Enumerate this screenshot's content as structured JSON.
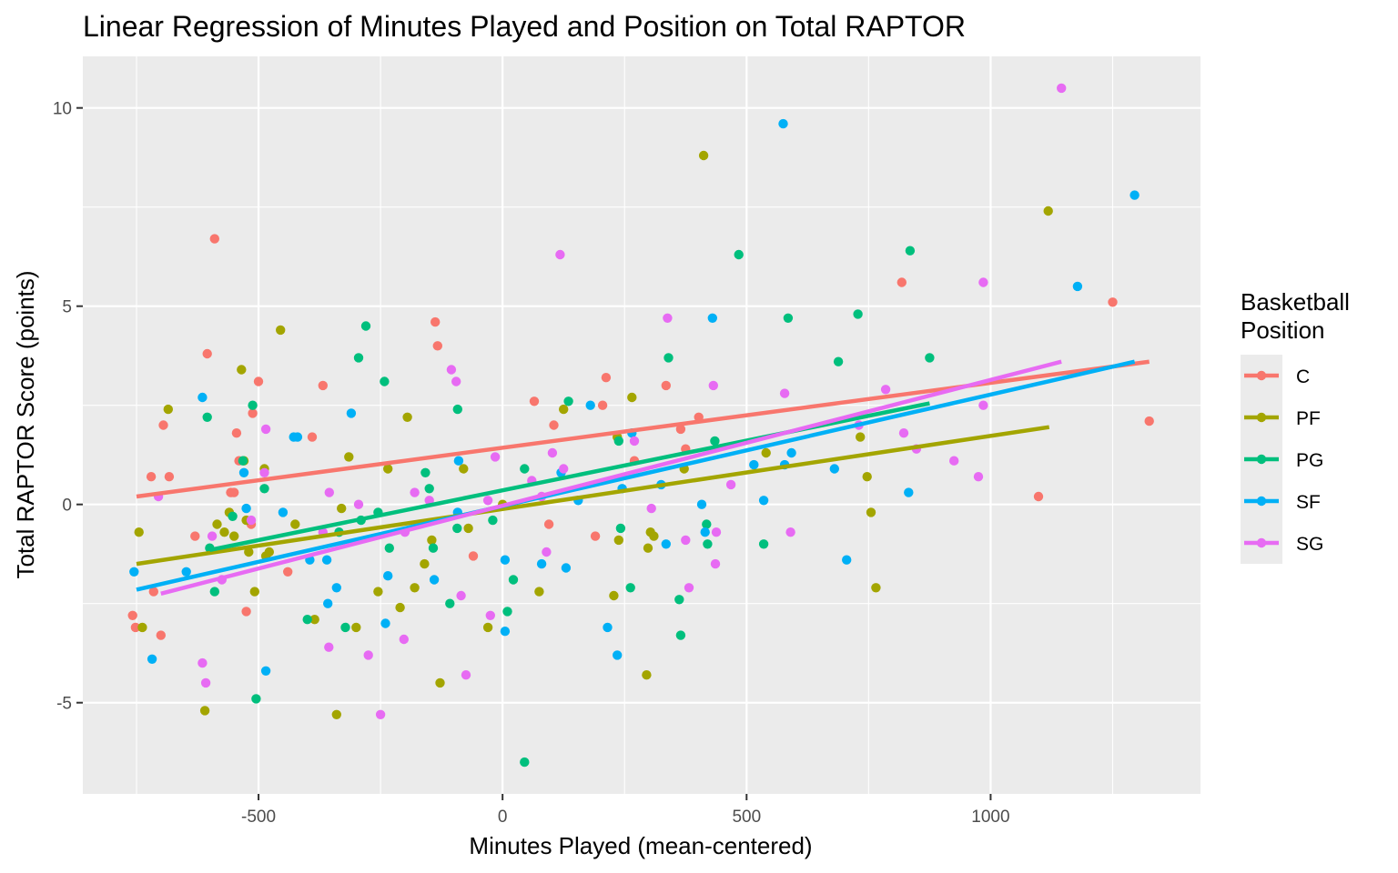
{
  "chart_data": {
    "type": "scatter",
    "title": "Linear Regression of Minutes Played and Position on Total RAPTOR",
    "xlabel": "Minutes Played (mean-centered)",
    "ylabel": "Total RAPTOR Score (points)",
    "xlim": [
      -860,
      1430
    ],
    "ylim": [
      -7.3,
      11.3
    ],
    "x_ticks": [
      -500,
      0,
      500,
      1000
    ],
    "x_tick_labels": [
      "-500",
      "0",
      "500",
      "1000"
    ],
    "y_ticks": [
      -5,
      0,
      5,
      10
    ],
    "y_tick_labels": [
      "-5",
      "0",
      "5",
      "10"
    ],
    "grid": true,
    "legend": {
      "title": "Basketball\nPosition",
      "placement": "right"
    },
    "series": [
      {
        "name": "C",
        "color": "#F8766D",
        "fit": {
          "x": [
            -750,
            1325
          ],
          "y": [
            0.2,
            3.6
          ]
        },
        "points": [
          [
            -758,
            -2.8
          ],
          [
            -752,
            -3.1
          ],
          [
            -720,
            0.7
          ],
          [
            -715,
            -2.2
          ],
          [
            -700,
            -3.3
          ],
          [
            -695,
            2.0
          ],
          [
            -683,
            0.7
          ],
          [
            -630,
            -0.8
          ],
          [
            -605,
            3.8
          ],
          [
            -590,
            6.7
          ],
          [
            -557,
            0.3
          ],
          [
            -550,
            0.3
          ],
          [
            -545,
            1.8
          ],
          [
            -540,
            1.1
          ],
          [
            -525,
            -2.7
          ],
          [
            -515,
            -0.5
          ],
          [
            -512,
            2.3
          ],
          [
            -500,
            3.1
          ],
          [
            -440,
            -1.7
          ],
          [
            -390,
            1.7
          ],
          [
            -368,
            3.0
          ],
          [
            -138,
            4.6
          ],
          [
            -133,
            4.0
          ],
          [
            -60,
            -1.3
          ],
          [
            65,
            2.6
          ],
          [
            95,
            -0.5
          ],
          [
            105,
            2.0
          ],
          [
            190,
            -0.8
          ],
          [
            205,
            2.5
          ],
          [
            212,
            3.2
          ],
          [
            270,
            1.1
          ],
          [
            335,
            3.0
          ],
          [
            365,
            1.9
          ],
          [
            375,
            1.4
          ],
          [
            402,
            2.2
          ],
          [
            818,
            5.6
          ],
          [
            1098,
            0.2
          ],
          [
            1250,
            5.1
          ],
          [
            1325,
            2.1
          ]
        ]
      },
      {
        "name": "PF",
        "color": "#A3A500",
        "fit": {
          "x": [
            -750,
            1120
          ],
          "y": [
            -1.5,
            1.95
          ]
        },
        "points": [
          [
            -745,
            -0.7
          ],
          [
            -738,
            -3.1
          ],
          [
            -685,
            2.4
          ],
          [
            -610,
            -5.2
          ],
          [
            -585,
            -0.5
          ],
          [
            -570,
            -0.7
          ],
          [
            -560,
            -0.2
          ],
          [
            -550,
            -0.8
          ],
          [
            -535,
            3.4
          ],
          [
            -530,
            1.1
          ],
          [
            -525,
            -0.4
          ],
          [
            -520,
            -1.2
          ],
          [
            -508,
            -2.2
          ],
          [
            -488,
            0.9
          ],
          [
            -485,
            -1.3
          ],
          [
            -478,
            -1.2
          ],
          [
            -455,
            4.4
          ],
          [
            -425,
            -0.5
          ],
          [
            -385,
            -2.9
          ],
          [
            -330,
            -0.1
          ],
          [
            -315,
            1.2
          ],
          [
            -340,
            -5.3
          ],
          [
            -300,
            -3.1
          ],
          [
            -255,
            -2.2
          ],
          [
            -235,
            0.9
          ],
          [
            -210,
            -2.6
          ],
          [
            -195,
            2.2
          ],
          [
            -180,
            -2.1
          ],
          [
            -160,
            -1.5
          ],
          [
            -145,
            -0.9
          ],
          [
            -128,
            -4.5
          ],
          [
            -80,
            0.9
          ],
          [
            -70,
            -0.6
          ],
          [
            -30,
            -3.1
          ],
          [
            0,
            0.0
          ],
          [
            75,
            -2.2
          ],
          [
            125,
            2.4
          ],
          [
            228,
            -2.3
          ],
          [
            235,
            1.7
          ],
          [
            238,
            -0.9
          ],
          [
            265,
            2.7
          ],
          [
            295,
            -4.3
          ],
          [
            298,
            -1.1
          ],
          [
            303,
            -0.7
          ],
          [
            310,
            -0.8
          ],
          [
            372,
            0.9
          ],
          [
            412,
            8.8
          ],
          [
            540,
            1.3
          ],
          [
            733,
            1.7
          ],
          [
            747,
            0.7
          ],
          [
            755,
            -0.2
          ],
          [
            765,
            -2.1
          ],
          [
            1118,
            7.4
          ]
        ]
      },
      {
        "name": "PG",
        "color": "#00BF7D",
        "fit": {
          "x": [
            -600,
            875
          ],
          "y": [
            -1.15,
            2.55
          ]
        },
        "points": [
          [
            -605,
            2.2
          ],
          [
            -600,
            -1.1
          ],
          [
            -590,
            -2.2
          ],
          [
            -553,
            -0.3
          ],
          [
            -532,
            1.1
          ],
          [
            -512,
            2.5
          ],
          [
            -505,
            -4.9
          ],
          [
            -488,
            0.4
          ],
          [
            -400,
            -2.9
          ],
          [
            -335,
            -0.7
          ],
          [
            -322,
            -3.1
          ],
          [
            -295,
            3.7
          ],
          [
            -290,
            -0.4
          ],
          [
            -280,
            4.5
          ],
          [
            -255,
            -0.2
          ],
          [
            -242,
            3.1
          ],
          [
            -232,
            -1.1
          ],
          [
            -158,
            0.8
          ],
          [
            -150,
            0.4
          ],
          [
            -142,
            -1.1
          ],
          [
            -108,
            -2.5
          ],
          [
            -92,
            2.4
          ],
          [
            -93,
            -0.6
          ],
          [
            -20,
            -0.4
          ],
          [
            10,
            -2.7
          ],
          [
            22,
            -1.9
          ],
          [
            45,
            0.9
          ],
          [
            45,
            -6.5
          ],
          [
            135,
            2.6
          ],
          [
            238,
            1.6
          ],
          [
            242,
            -0.6
          ],
          [
            262,
            -2.1
          ],
          [
            340,
            3.7
          ],
          [
            362,
            -2.4
          ],
          [
            365,
            -3.3
          ],
          [
            418,
            -0.5
          ],
          [
            420,
            -1.0
          ],
          [
            435,
            1.6
          ],
          [
            484,
            6.3
          ],
          [
            535,
            -1.0
          ],
          [
            585,
            4.7
          ],
          [
            688,
            3.6
          ],
          [
            728,
            4.8
          ],
          [
            835,
            6.4
          ],
          [
            875,
            3.7
          ]
        ]
      },
      {
        "name": "SF",
        "color": "#00B0F6",
        "fit": {
          "x": [
            -750,
            1295
          ],
          "y": [
            -2.15,
            3.6
          ]
        },
        "points": [
          [
            -755,
            -1.7
          ],
          [
            -718,
            -3.9
          ],
          [
            -648,
            -1.7
          ],
          [
            -615,
            2.7
          ],
          [
            -530,
            0.8
          ],
          [
            -525,
            -0.1
          ],
          [
            -485,
            -4.2
          ],
          [
            -450,
            -0.2
          ],
          [
            -428,
            1.7
          ],
          [
            -420,
            1.7
          ],
          [
            -395,
            -1.4
          ],
          [
            -360,
            -1.4
          ],
          [
            -358,
            -2.5
          ],
          [
            -340,
            -2.1
          ],
          [
            -310,
            2.3
          ],
          [
            -240,
            -3.0
          ],
          [
            -235,
            -1.8
          ],
          [
            -140,
            -1.9
          ],
          [
            -90,
            1.1
          ],
          [
            -92,
            -0.2
          ],
          [
            5,
            -1.4
          ],
          [
            5,
            -3.2
          ],
          [
            80,
            -1.5
          ],
          [
            120,
            0.8
          ],
          [
            130,
            -1.6
          ],
          [
            155,
            0.1
          ],
          [
            180,
            2.5
          ],
          [
            215,
            -3.1
          ],
          [
            235,
            -3.8
          ],
          [
            245,
            0.4
          ],
          [
            265,
            1.8
          ],
          [
            325,
            0.5
          ],
          [
            335,
            -1.0
          ],
          [
            408,
            0.0
          ],
          [
            415,
            -0.7
          ],
          [
            430,
            4.7
          ],
          [
            515,
            1.0
          ],
          [
            535,
            0.1
          ],
          [
            575,
            9.6
          ],
          [
            578,
            1.0
          ],
          [
            592,
            1.3
          ],
          [
            680,
            0.9
          ],
          [
            705,
            -1.4
          ],
          [
            832,
            0.3
          ],
          [
            1178,
            5.5
          ],
          [
            1295,
            7.8
          ]
        ]
      },
      {
        "name": "SG",
        "color": "#E76BF3",
        "fit": {
          "x": [
            -700,
            1145
          ],
          "y": [
            -2.25,
            3.6
          ]
        },
        "points": [
          [
            -705,
            0.2
          ],
          [
            -615,
            -4.0
          ],
          [
            -608,
            -4.5
          ],
          [
            -595,
            -0.8
          ],
          [
            -575,
            -1.9
          ],
          [
            -515,
            -0.4
          ],
          [
            -488,
            0.8
          ],
          [
            -485,
            1.9
          ],
          [
            -368,
            -0.7
          ],
          [
            -355,
            0.3
          ],
          [
            -356,
            -3.6
          ],
          [
            -295,
            0.0
          ],
          [
            -275,
            -3.8
          ],
          [
            -250,
            -5.3
          ],
          [
            -200,
            -0.7
          ],
          [
            -202,
            -3.4
          ],
          [
            -180,
            0.3
          ],
          [
            -150,
            0.1
          ],
          [
            -105,
            3.4
          ],
          [
            -95,
            3.1
          ],
          [
            -85,
            -2.3
          ],
          [
            -75,
            -4.3
          ],
          [
            -30,
            0.1
          ],
          [
            -25,
            -2.8
          ],
          [
            -15,
            1.2
          ],
          [
            60,
            0.6
          ],
          [
            80,
            0.2
          ],
          [
            90,
            -1.2
          ],
          [
            102,
            1.3
          ],
          [
            118,
            6.3
          ],
          [
            125,
            0.9
          ],
          [
            270,
            1.6
          ],
          [
            305,
            -0.1
          ],
          [
            338,
            4.7
          ],
          [
            375,
            -0.9
          ],
          [
            382,
            -2.1
          ],
          [
            432,
            3.0
          ],
          [
            438,
            -0.7
          ],
          [
            436,
            -1.5
          ],
          [
            468,
            0.5
          ],
          [
            578,
            2.8
          ],
          [
            590,
            -0.7
          ],
          [
            730,
            2.0
          ],
          [
            785,
            2.9
          ],
          [
            822,
            1.8
          ],
          [
            848,
            1.4
          ],
          [
            925,
            1.1
          ],
          [
            975,
            0.7
          ],
          [
            985,
            5.6
          ],
          [
            985,
            2.5
          ],
          [
            1145,
            10.5
          ]
        ]
      }
    ]
  }
}
